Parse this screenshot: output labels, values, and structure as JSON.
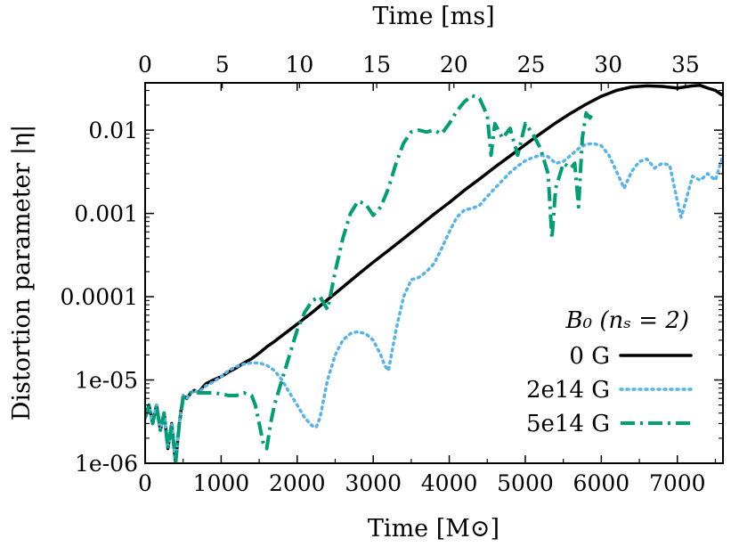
{
  "chart_data": {
    "type": "line",
    "yscale": "log",
    "xlabel": "Time [M⊙]",
    "x2label": "Time [ms]",
    "ylabel": "Distortion parameter |η|",
    "xlim": [
      0,
      7600
    ],
    "x2lim": [
      0,
      37.43
    ],
    "ylim": [
      1e-06,
      0.037
    ],
    "x_ticks": [
      0,
      1000,
      2000,
      3000,
      4000,
      5000,
      6000,
      7000
    ],
    "x_tick_labels": [
      "0",
      "1000",
      "2000",
      "3000",
      "4000",
      "5000",
      "6000",
      "7000"
    ],
    "x2_ticks": [
      0,
      5,
      10,
      15,
      20,
      25,
      30,
      35
    ],
    "x2_tick_labels": [
      "0",
      "5",
      "10",
      "15",
      "20",
      "25",
      "30",
      "35"
    ],
    "y_ticks": [
      1e-06,
      1e-05,
      0.0001,
      0.001,
      0.01
    ],
    "y_tick_labels": [
      "1e-06",
      "1e-05",
      "0.0001",
      "0.001",
      "0.01"
    ],
    "legend_title": "B₀ (nₛ = 2)",
    "legend_position": "bottom-right",
    "series": [
      {
        "name": "0 G",
        "color": "#000000",
        "style": "solid",
        "x": [
          0,
          50,
          100,
          150,
          200,
          250,
          300,
          350,
          400,
          450,
          500,
          550,
          600,
          650,
          700,
          750,
          800,
          900,
          1000,
          1100,
          1200,
          1300,
          1400,
          1500,
          1600,
          1700,
          1800,
          1900,
          2000,
          2200,
          2400,
          2600,
          2800,
          3000,
          3200,
          3400,
          3600,
          3800,
          4000,
          4200,
          4400,
          4600,
          4800,
          5000,
          5200,
          5400,
          5600,
          5800,
          6000,
          6200,
          6400,
          6600,
          6800,
          7000,
          7100,
          7200,
          7300,
          7400,
          7500,
          7600
        ],
        "y": [
          3.5e-06,
          5e-06,
          3e-06,
          5e-06,
          2.5e-06,
          4e-06,
          1.5e-06,
          3e-06,
          1e-06,
          3e-06,
          6.5e-06,
          6e-06,
          7e-06,
          7.5e-06,
          7e-06,
          8e-06,
          9e-06,
          1e-05,
          1.1e-05,
          1.25e-05,
          1.4e-05,
          1.6e-05,
          1.8e-05,
          2.1e-05,
          2.5e-05,
          2.9e-05,
          3.4e-05,
          4e-05,
          4.7e-05,
          6.5e-05,
          9.2e-05,
          0.00013,
          0.000185,
          0.00026,
          0.00036,
          0.0005,
          0.0007,
          0.00098,
          0.00135,
          0.0019,
          0.0026,
          0.0036,
          0.0049,
          0.0067,
          0.0091,
          0.0122,
          0.016,
          0.0205,
          0.0255,
          0.03,
          0.033,
          0.034,
          0.0335,
          0.032,
          0.033,
          0.034,
          0.0345,
          0.032,
          0.03,
          0.026
        ]
      },
      {
        "name": "2e14 G",
        "color": "#56b4e9",
        "style": "dotted",
        "x": [
          0,
          50,
          100,
          150,
          200,
          250,
          300,
          350,
          400,
          450,
          500,
          550,
          600,
          650,
          700,
          800,
          900,
          1000,
          1100,
          1200,
          1300,
          1400,
          1500,
          1600,
          1700,
          1800,
          1900,
          2000,
          2100,
          2200,
          2250,
          2300,
          2400,
          2500,
          2600,
          2700,
          2800,
          2900,
          3000,
          3100,
          3150,
          3200,
          3300,
          3400,
          3500,
          3600,
          3700,
          3800,
          3900,
          4000,
          4100,
          4200,
          4300,
          4400,
          4500,
          4600,
          4700,
          4800,
          4900,
          5000,
          5100,
          5200,
          5300,
          5400,
          5500,
          5600,
          5700,
          5800,
          5900,
          6000,
          6100,
          6200,
          6300,
          6400,
          6500,
          6600,
          6700,
          6800,
          6900,
          7000,
          7050,
          7100,
          7200,
          7300,
          7400,
          7500,
          7600
        ],
        "y": [
          3.5e-06,
          5e-06,
          3e-06,
          5e-06,
          2.5e-06,
          4e-06,
          1.5e-06,
          3e-06,
          1e-06,
          3e-06,
          6.5e-06,
          6e-06,
          7e-06,
          7.5e-06,
          7e-06,
          8.5e-06,
          9.5e-06,
          1.1e-05,
          1.3e-05,
          1.45e-05,
          1.55e-05,
          1.6e-05,
          1.6e-05,
          1.5e-05,
          1.3e-05,
          1e-05,
          7e-06,
          5e-06,
          3.5e-06,
          2.8e-06,
          2.7e-06,
          3.5e-06,
          1e-05,
          2e-05,
          3e-05,
          3.6e-05,
          3.8e-05,
          3.6e-05,
          3e-05,
          2e-05,
          1.5e-05,
          1.3e-05,
          4e-05,
          0.0001,
          0.00016,
          0.00017,
          0.0002,
          0.00025,
          0.00038,
          0.0006,
          0.0009,
          0.0011,
          0.00115,
          0.00125,
          0.0016,
          0.002,
          0.0025,
          0.0031,
          0.0037,
          0.0043,
          0.0047,
          0.005,
          0.0048,
          0.004,
          0.0042,
          0.005,
          0.006,
          0.0068,
          0.0069,
          0.0065,
          0.005,
          0.0032,
          0.002,
          0.0032,
          0.0042,
          0.0045,
          0.0035,
          0.004,
          0.0038,
          0.0014,
          0.0009,
          0.0013,
          0.0028,
          0.0025,
          0.003,
          0.0025,
          0.005
        ]
      },
      {
        "name": "5e14 G",
        "color": "#009e73",
        "style": "dashdot",
        "x": [
          0,
          50,
          100,
          150,
          200,
          250,
          300,
          350,
          400,
          450,
          500,
          550,
          600,
          700,
          800,
          900,
          1000,
          1100,
          1200,
          1300,
          1400,
          1450,
          1500,
          1550,
          1600,
          1650,
          1700,
          1800,
          1900,
          2000,
          2100,
          2200,
          2300,
          2400,
          2500,
          2600,
          2700,
          2800,
          2900,
          3000,
          3100,
          3200,
          3300,
          3400,
          3500,
          3600,
          3700,
          3800,
          3900,
          4000,
          4100,
          4200,
          4300,
          4400,
          4500,
          4550,
          4600,
          4700,
          4800,
          4900,
          5000,
          5100,
          5200,
          5300,
          5350,
          5400,
          5500,
          5600,
          5650,
          5700,
          5750,
          5800,
          5850,
          5900
        ],
        "y": [
          3.5e-06,
          5e-06,
          3e-06,
          5e-06,
          2.5e-06,
          4e-06,
          1.5e-06,
          3e-06,
          1e-06,
          3e-06,
          6e-06,
          6.8e-06,
          7e-06,
          7e-06,
          7e-06,
          7e-06,
          6.8e-06,
          6.5e-06,
          6.5e-06,
          7e-06,
          6.5e-06,
          5e-06,
          3e-06,
          1.8e-06,
          1.5e-06,
          3e-06,
          5e-06,
          1e-05,
          2e-05,
          4e-05,
          6.5e-05,
          9e-05,
          0.0001,
          7e-05,
          0.0002,
          0.0005,
          0.001,
          0.0014,
          0.0013,
          0.00095,
          0.0012,
          0.002,
          0.004,
          0.007,
          0.0095,
          0.01,
          0.0095,
          0.01,
          0.009,
          0.012,
          0.017,
          0.022,
          0.026,
          0.024,
          0.015,
          0.005,
          0.012,
          0.008,
          0.0105,
          0.005,
          0.012,
          0.009,
          0.006,
          0.003,
          0.0005,
          0.002,
          0.004,
          0.0035,
          0.004,
          0.0012,
          0.008,
          0.016,
          0.014,
          0.017
        ]
      }
    ]
  }
}
